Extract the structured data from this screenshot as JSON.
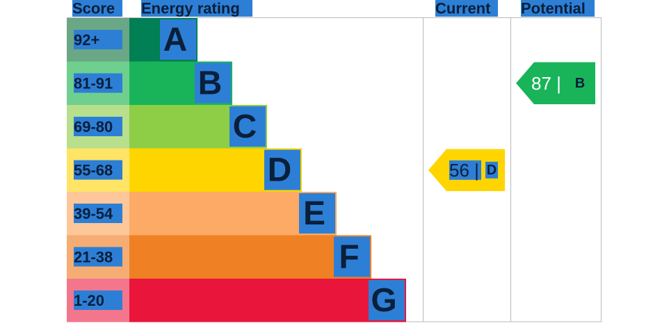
{
  "chart_data": {
    "type": "bar",
    "headers": {
      "score": "Score",
      "rating": "Energy rating",
      "current": "Current",
      "potential": "Potential"
    },
    "bands": [
      {
        "letter": "A",
        "range": "92+",
        "min": 92,
        "max": 100,
        "color": "#008054",
        "score_bg": "#6aa787"
      },
      {
        "letter": "B",
        "range": "81-91",
        "min": 81,
        "max": 91,
        "color": "#19b459",
        "score_bg": "#6fcf8e"
      },
      {
        "letter": "C",
        "range": "69-80",
        "min": 69,
        "max": 80,
        "color": "#8dce46",
        "score_bg": "#b7df8c"
      },
      {
        "letter": "D",
        "range": "55-68",
        "min": 55,
        "max": 68,
        "color": "#ffd500",
        "score_bg": "#ffe466"
      },
      {
        "letter": "E",
        "range": "39-54",
        "min": 39,
        "max": 54,
        "color": "#fcaa65",
        "score_bg": "#fdc79a"
      },
      {
        "letter": "F",
        "range": "21-38",
        "min": 21,
        "max": 38,
        "color": "#ef8023",
        "score_bg": "#f5ad73"
      },
      {
        "letter": "G",
        "range": "1-20",
        "min": 1,
        "max": 20,
        "color": "#e9153b",
        "score_bg": "#f3768d"
      }
    ],
    "current": {
      "value": 56,
      "letter": "D",
      "color": "#ffd500",
      "text_color": "#0a1f3a"
    },
    "potential": {
      "value": 87,
      "letter": "B",
      "color": "#19b459",
      "text_color": "#ffffff"
    }
  }
}
